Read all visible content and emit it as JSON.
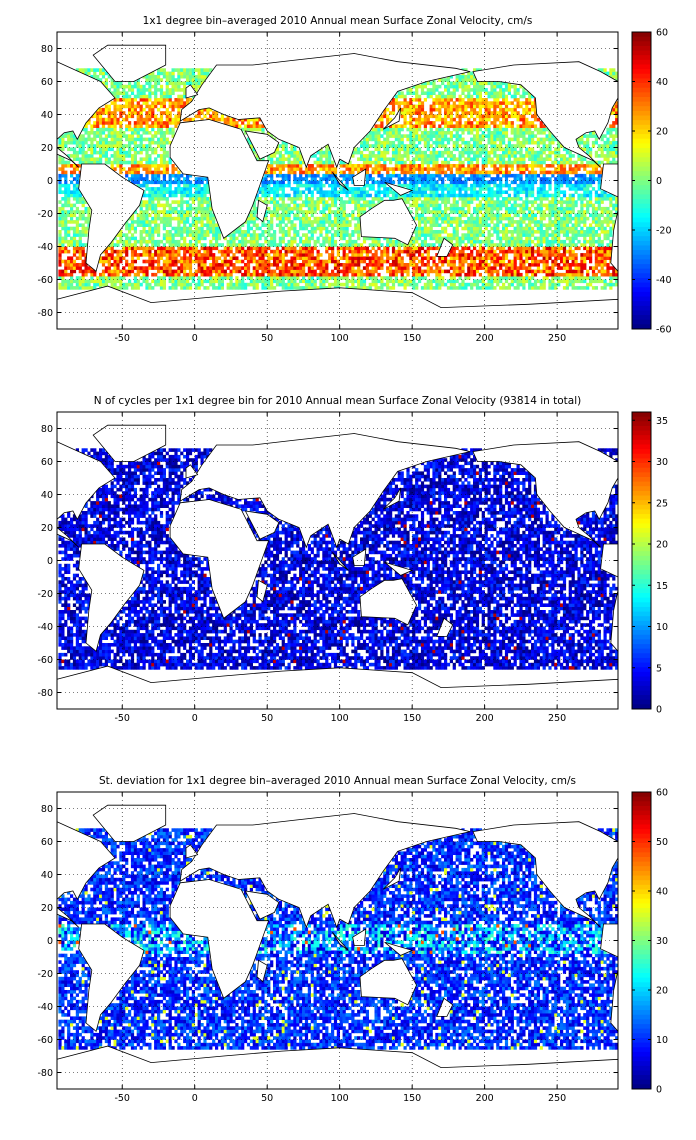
{
  "chart_data": [
    {
      "type": "heatmap",
      "title": "1x1 degree bin–averaged 2010 Annual mean Surface Zonal Velocity, cm/s",
      "xlabel": "",
      "ylabel": "",
      "xlim": [
        -95,
        292
      ],
      "ylim": [
        -90,
        90
      ],
      "x_ticks": [
        -50,
        0,
        50,
        100,
        150,
        200,
        250
      ],
      "y_ticks": [
        80,
        60,
        40,
        20,
        0,
        -20,
        -40,
        -60,
        -80
      ],
      "grid": true,
      "grid_style": "dotted",
      "colormap": "jet",
      "colorbar": {
        "min": -60,
        "max": 60,
        "ticks": [
          60,
          40,
          20,
          0,
          -20,
          -40,
          -60
        ]
      },
      "typical_values_by_latitude": [
        {
          "lat": 40,
          "value": 20
        },
        {
          "lat": 0,
          "value": -30
        },
        {
          "lat": -50,
          "value": 30
        }
      ]
    },
    {
      "type": "heatmap",
      "title": "N of cycles per 1x1 degree bin for 2010 Annual mean Surface Zonal Velocity (93814 in total)",
      "xlabel": "",
      "ylabel": "",
      "xlim": [
        -95,
        292
      ],
      "ylim": [
        -90,
        90
      ],
      "x_ticks": [
        -50,
        0,
        50,
        100,
        150,
        200,
        250
      ],
      "y_ticks": [
        80,
        60,
        40,
        20,
        0,
        -20,
        -40,
        -60,
        -80
      ],
      "grid": true,
      "grid_style": "dotted",
      "colormap": "jet",
      "colorbar": {
        "min": 0,
        "max": 36,
        "ticks": [
          35,
          30,
          25,
          20,
          15,
          10,
          5,
          0
        ]
      },
      "typical_values_by_latitude": [
        {
          "lat": 40,
          "value": 3
        },
        {
          "lat": 0,
          "value": 3
        },
        {
          "lat": -50,
          "value": 4
        }
      ]
    },
    {
      "type": "heatmap",
      "title": "St. deviation for 1x1 degree bin–averaged 2010 Annual mean Surface Zonal Velocity, cm/s",
      "xlabel": "",
      "ylabel": "",
      "xlim": [
        -95,
        292
      ],
      "ylim": [
        -90,
        90
      ],
      "x_ticks": [
        -50,
        0,
        50,
        100,
        150,
        200,
        250
      ],
      "y_ticks": [
        80,
        60,
        40,
        20,
        0,
        -20,
        -40,
        -60,
        -80
      ],
      "grid": true,
      "grid_style": "dotted",
      "colormap": "jet",
      "colorbar": {
        "min": 0,
        "max": 60,
        "ticks": [
          60,
          50,
          40,
          30,
          20,
          10,
          0
        ]
      },
      "typical_values_by_latitude": [
        {
          "lat": 40,
          "value": 12
        },
        {
          "lat": 0,
          "value": 18
        },
        {
          "lat": -50,
          "value": 12
        }
      ]
    }
  ],
  "colors": {
    "land": "#ffffff",
    "coastline": "#000000",
    "background": "#ffffff"
  }
}
